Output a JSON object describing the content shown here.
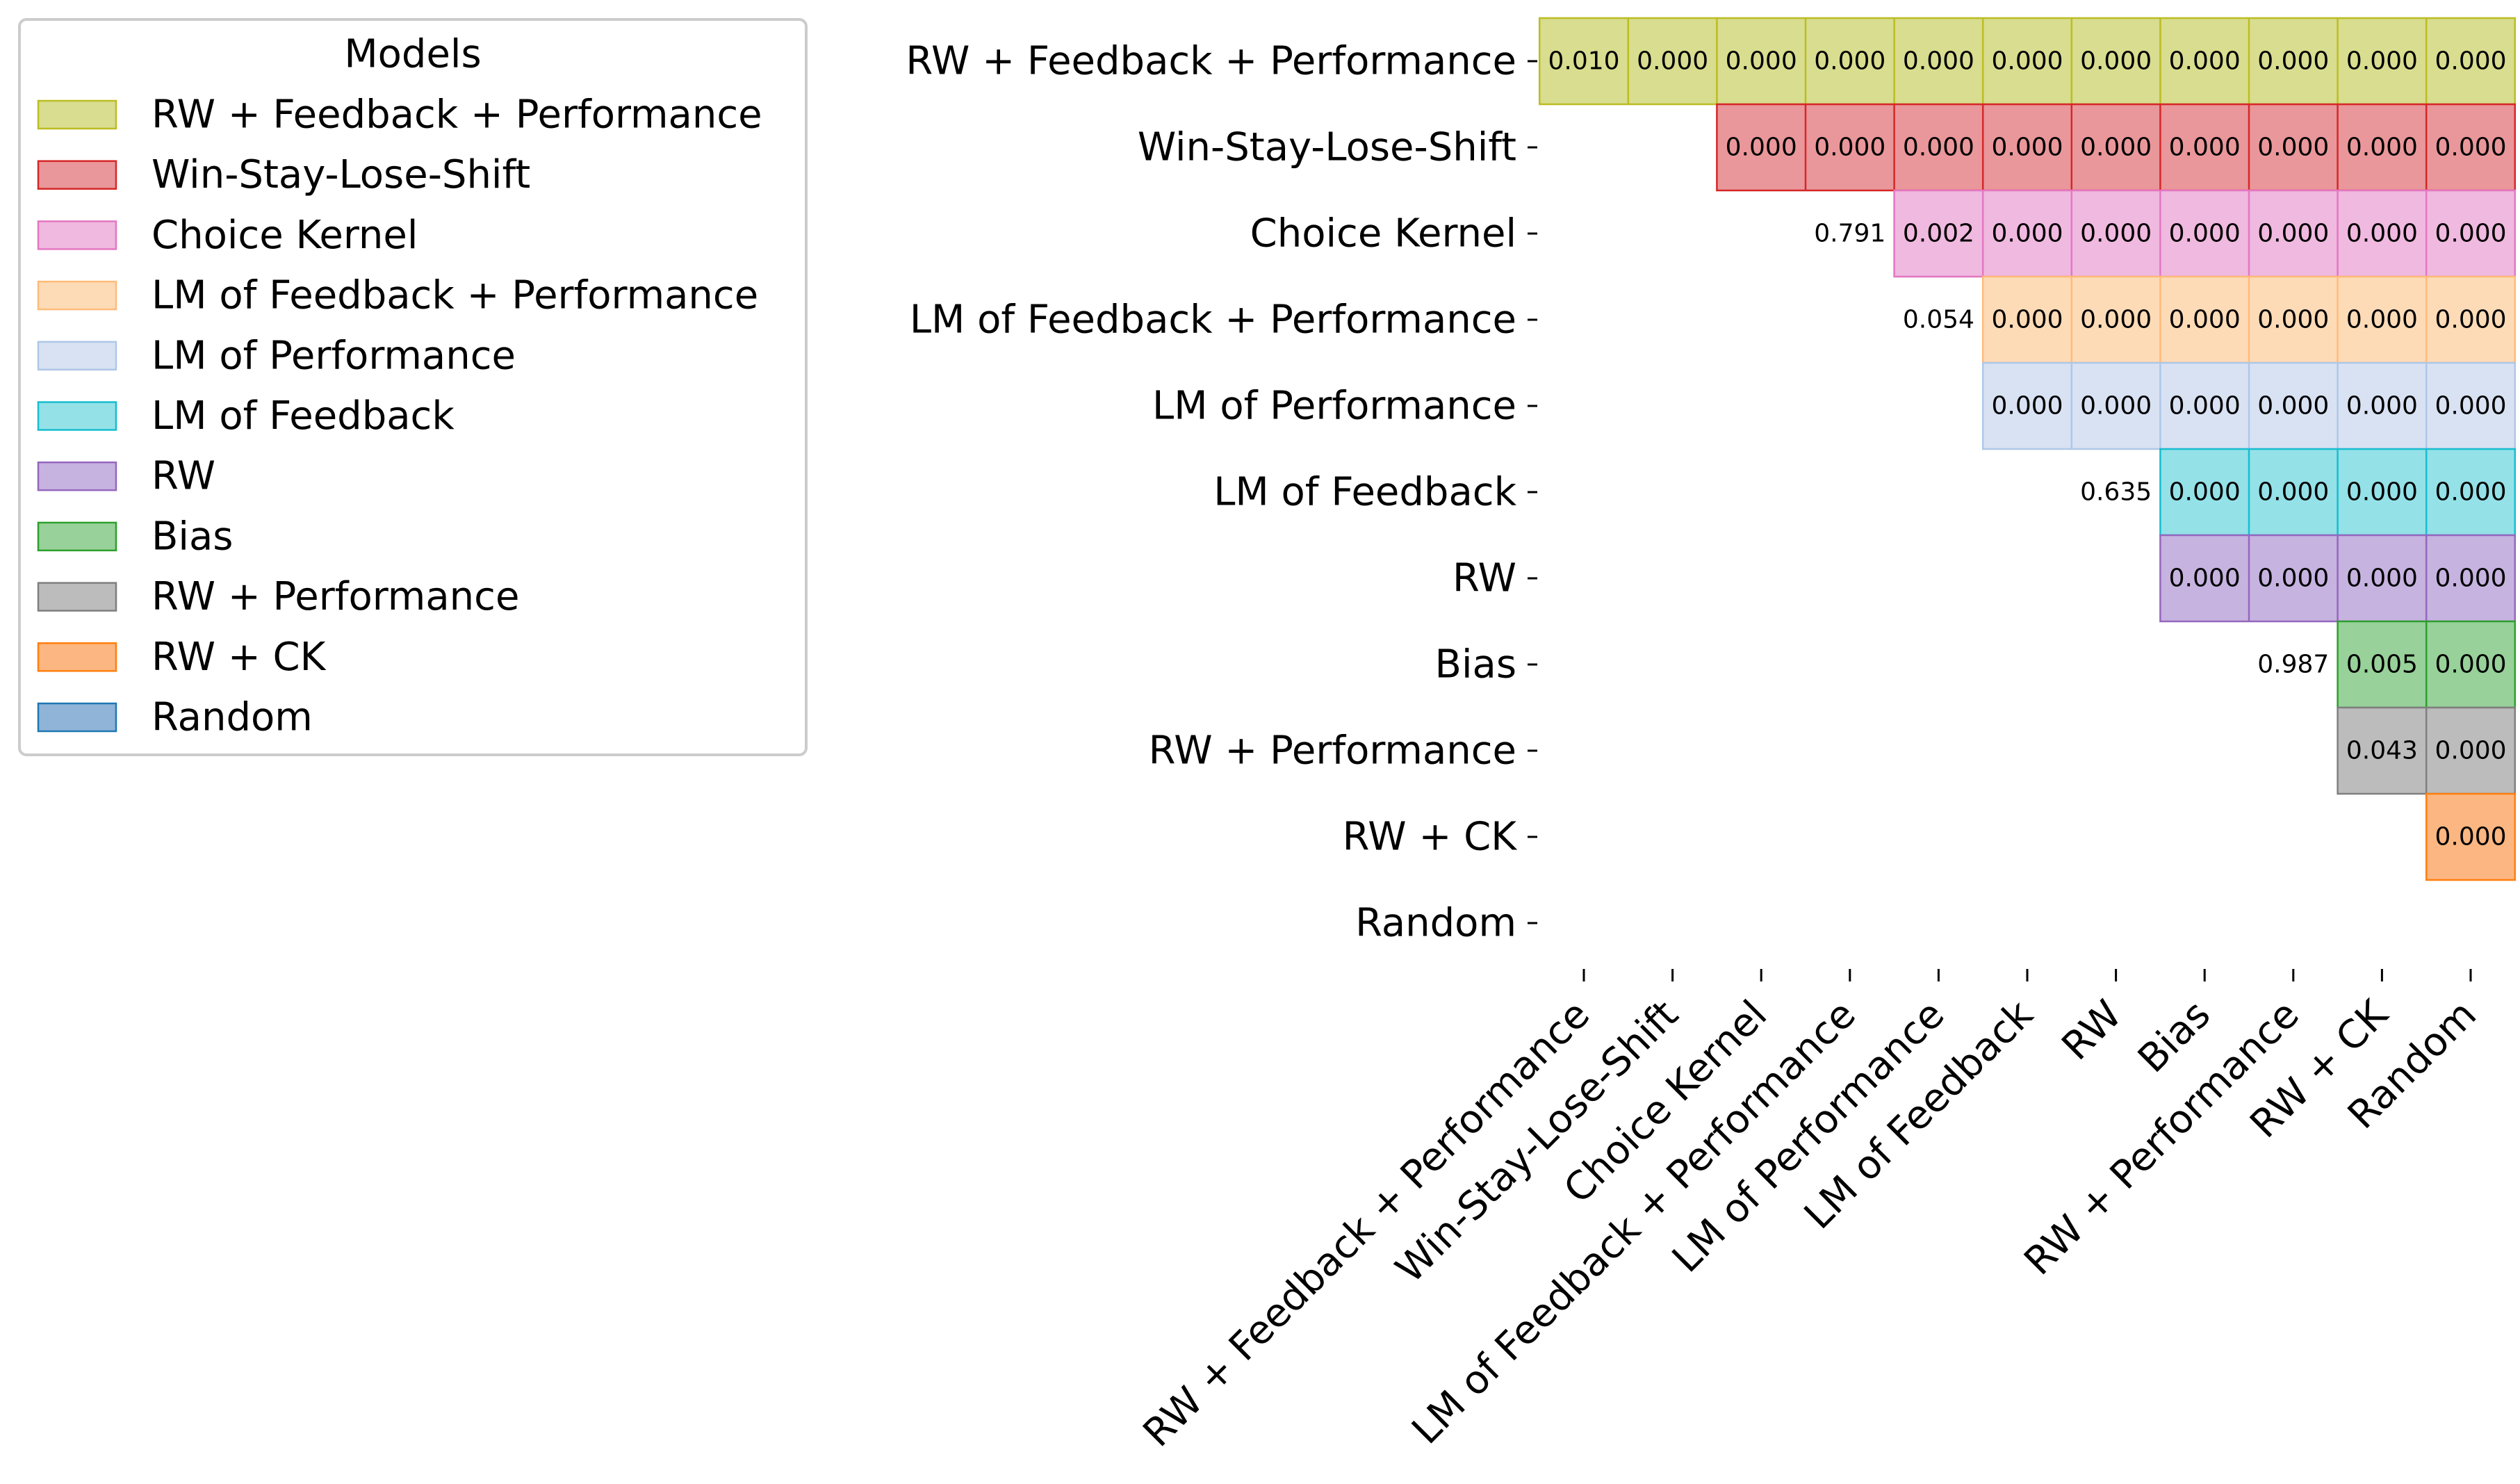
{
  "chart_data": {
    "type": "heatmap",
    "models": [
      "RW + Feedback + Performance",
      "Win-Stay-Lose-Shift",
      "Choice Kernel",
      "LM of Feedback + Performance",
      "LM of Performance",
      "LM of Feedback",
      "RW",
      "Bias",
      "RW + Performance",
      "RW + CK",
      "Random"
    ],
    "colors": [
      "#d8dd8f",
      "#e9979a",
      "#f0b9df",
      "#fedbb7",
      "#d9e2f2",
      "#94e1e8",
      "#c6b3e0",
      "#98d19a",
      "#bcbcbc",
      "#fcb681",
      "#8fb4d7"
    ],
    "edge_colors": [
      "#bcbd22",
      "#d62728",
      "#e377c2",
      "#ffbb78",
      "#aec7e8",
      "#17becf",
      "#9467bd",
      "#2ca02c",
      "#7f7f7f",
      "#ff7f0e",
      "#1f77b4"
    ],
    "rows": [
      {
        "row": "RW + Feedback + Performance",
        "cells": [
          [
            0,
            "0.010",
            true
          ],
          [
            1,
            "0.000",
            true
          ],
          [
            2,
            "0.000",
            true
          ],
          [
            3,
            "0.000",
            true
          ],
          [
            4,
            "0.000",
            true
          ],
          [
            5,
            "0.000",
            true
          ],
          [
            6,
            "0.000",
            true
          ],
          [
            7,
            "0.000",
            true
          ],
          [
            8,
            "0.000",
            true
          ],
          [
            9,
            "0.000",
            true
          ],
          [
            10,
            "0.000",
            true
          ]
        ]
      },
      {
        "row": "Win-Stay-Lose-Shift",
        "cells": [
          [
            2,
            "0.000",
            true
          ],
          [
            3,
            "0.000",
            true
          ],
          [
            4,
            "0.000",
            true
          ],
          [
            5,
            "0.000",
            true
          ],
          [
            6,
            "0.000",
            true
          ],
          [
            7,
            "0.000",
            true
          ],
          [
            8,
            "0.000",
            true
          ],
          [
            9,
            "0.000",
            true
          ],
          [
            10,
            "0.000",
            true
          ]
        ]
      },
      {
        "row": "Choice Kernel",
        "cells": [
          [
            3,
            "0.791",
            false
          ],
          [
            4,
            "0.002",
            true
          ],
          [
            5,
            "0.000",
            true
          ],
          [
            6,
            "0.000",
            true
          ],
          [
            7,
            "0.000",
            true
          ],
          [
            8,
            "0.000",
            true
          ],
          [
            9,
            "0.000",
            true
          ],
          [
            10,
            "0.000",
            true
          ]
        ]
      },
      {
        "row": "LM of Feedback + Performance",
        "cells": [
          [
            4,
            "0.054",
            false
          ],
          [
            5,
            "0.000",
            true
          ],
          [
            6,
            "0.000",
            true
          ],
          [
            7,
            "0.000",
            true
          ],
          [
            8,
            "0.000",
            true
          ],
          [
            9,
            "0.000",
            true
          ],
          [
            10,
            "0.000",
            true
          ]
        ]
      },
      {
        "row": "LM of Performance",
        "cells": [
          [
            5,
            "0.000",
            true
          ],
          [
            6,
            "0.000",
            true
          ],
          [
            7,
            "0.000",
            true
          ],
          [
            8,
            "0.000",
            true
          ],
          [
            9,
            "0.000",
            true
          ],
          [
            10,
            "0.000",
            true
          ]
        ]
      },
      {
        "row": "LM of Feedback",
        "cells": [
          [
            6,
            "0.635",
            false
          ],
          [
            7,
            "0.000",
            true
          ],
          [
            8,
            "0.000",
            true
          ],
          [
            9,
            "0.000",
            true
          ],
          [
            10,
            "0.000",
            true
          ]
        ]
      },
      {
        "row": "RW",
        "cells": [
          [
            7,
            "0.000",
            true
          ],
          [
            8,
            "0.000",
            true
          ],
          [
            9,
            "0.000",
            true
          ],
          [
            10,
            "0.000",
            true
          ]
        ]
      },
      {
        "row": "Bias",
        "cells": [
          [
            8,
            "0.987",
            false
          ],
          [
            9,
            "0.005",
            true
          ],
          [
            10,
            "0.000",
            true
          ]
        ]
      },
      {
        "row": "RW + Performance",
        "cells": [
          [
            9,
            "0.043",
            true
          ],
          [
            10,
            "0.000",
            true
          ]
        ]
      },
      {
        "row": "RW + CK",
        "cells": [
          [
            10,
            "0.000",
            true
          ]
        ]
      },
      {
        "row": "Random",
        "cells": []
      }
    ],
    "legend": {
      "title": "Models",
      "placement": "top-left"
    }
  }
}
